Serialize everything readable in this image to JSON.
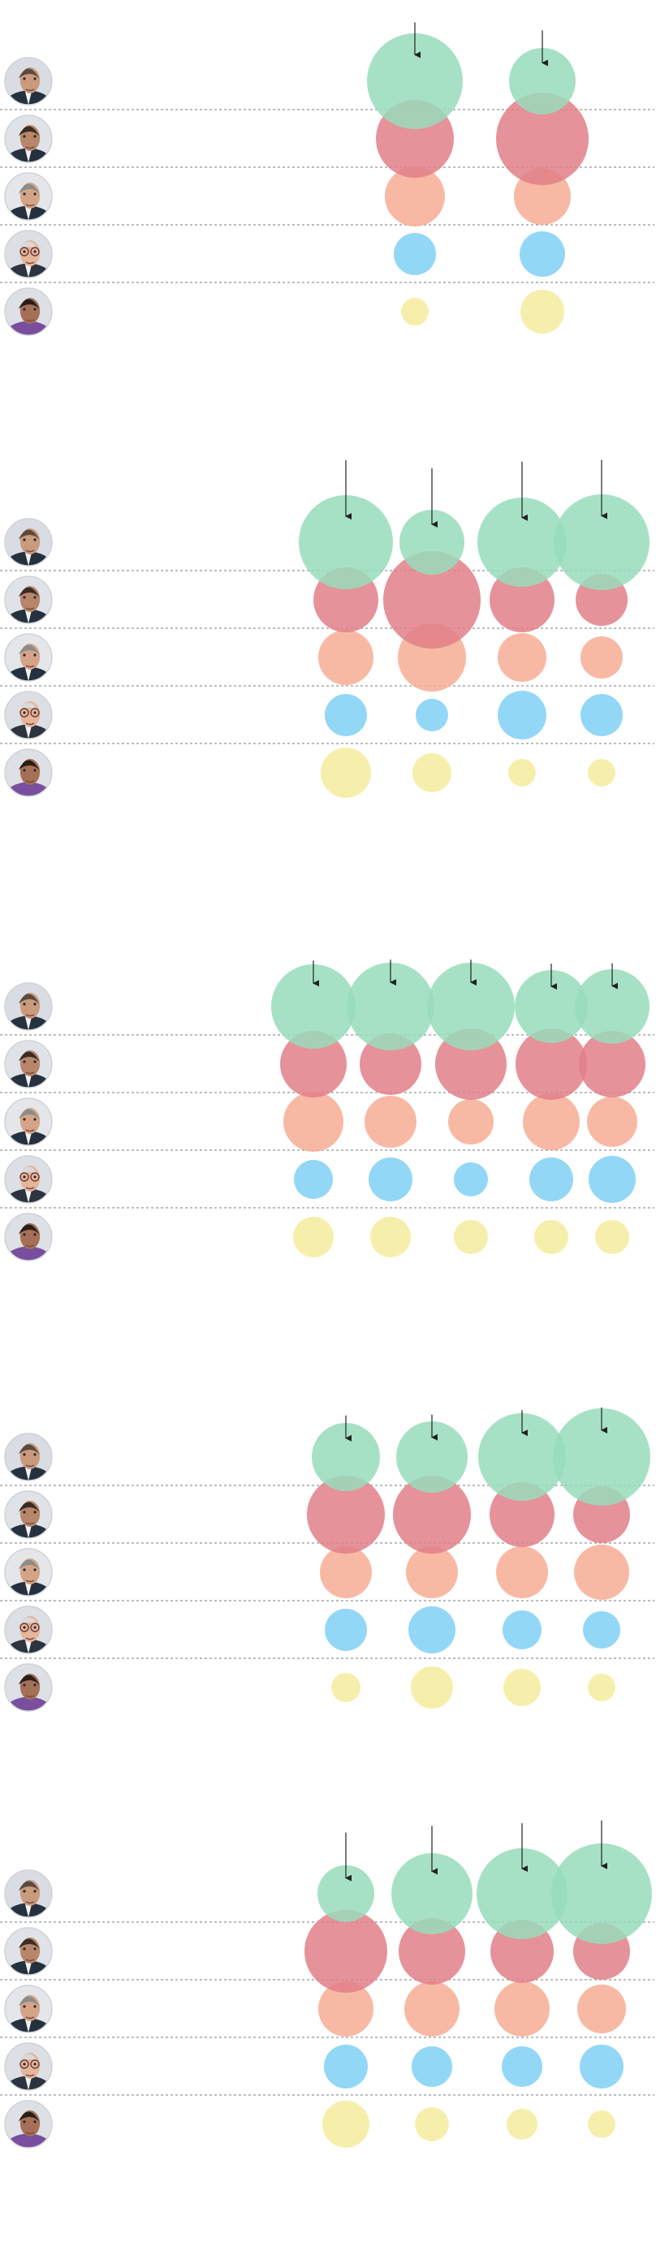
{
  "colors": {
    "candidate_1": "#98dcbb",
    "candidate_2": "#e27f88",
    "candidate_3": "#f7ad94",
    "candidate_4": "#80d0f4",
    "candidate_5": "#f5ec9e",
    "separator": "#7a7a7a",
    "arrow": "#222222"
  },
  "candidate_photos": [
    {
      "icon": "candidate-1-face-icon"
    },
    {
      "icon": "candidate-2-face-icon"
    },
    {
      "icon": "candidate-3-face-icon"
    },
    {
      "icon": "candidate-4-face-icon"
    },
    {
      "icon": "candidate-5-face-icon"
    }
  ],
  "chart_data": [
    {
      "type": "bubble",
      "panel": 1,
      "columns": 2,
      "highlight": "top",
      "size_values": [
        [
          59,
          41
        ],
        [
          48,
          57
        ],
        [
          37,
          35
        ],
        [
          26,
          28
        ],
        [
          17,
          27
        ]
      ]
    },
    {
      "type": "bubble",
      "panel": 2,
      "columns": 4,
      "highlight": "top",
      "size_values": [
        [
          58,
          40,
          55,
          59
        ],
        [
          40,
          60,
          40,
          32
        ],
        [
          34,
          42,
          30,
          26
        ],
        [
          26,
          20,
          30,
          26
        ],
        [
          31,
          24,
          17,
          17
        ]
      ]
    },
    {
      "type": "bubble",
      "panel": 3,
      "columns": 5,
      "highlight": "top",
      "size_values": [
        [
          52,
          54,
          54,
          45,
          46
        ],
        [
          41,
          38,
          44,
          44,
          41
        ],
        [
          37,
          32,
          28,
          35,
          31
        ],
        [
          24,
          27,
          21,
          27,
          29
        ],
        [
          25,
          25,
          21,
          21,
          21
        ]
      ]
    },
    {
      "type": "bubble",
      "panel": 4,
      "columns": 4,
      "highlight": "top",
      "size_values": [
        [
          42,
          44,
          54,
          60
        ],
        [
          48,
          48,
          40,
          35
        ],
        [
          32,
          32,
          32,
          34
        ],
        [
          26,
          29,
          24,
          23
        ],
        [
          18,
          26,
          23,
          17
        ]
      ]
    },
    {
      "type": "bubble",
      "panel": 5,
      "columns": 4,
      "highlight": "top",
      "size_values": [
        [
          35,
          50,
          56,
          62
        ],
        [
          51,
          41,
          39,
          35
        ],
        [
          34,
          34,
          34,
          30
        ],
        [
          27,
          25,
          25,
          27
        ],
        [
          29,
          21,
          19,
          17
        ]
      ]
    }
  ]
}
